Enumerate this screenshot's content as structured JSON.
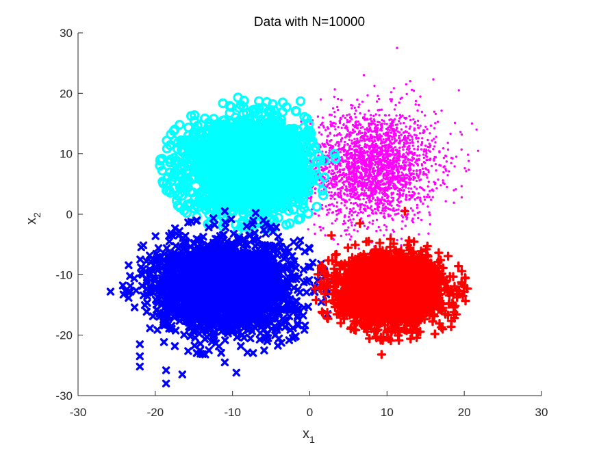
{
  "chart_data": {
    "type": "scatter",
    "title": "Data with N=10000",
    "xlabel": "x",
    "xlabel_sub": "1",
    "ylabel": "x",
    "ylabel_sub": "2",
    "xlim": [
      -30,
      30
    ],
    "ylim": [
      -30,
      30
    ],
    "xticks": [
      -30,
      -20,
      -10,
      0,
      10,
      20,
      30
    ],
    "yticks": [
      -30,
      -20,
      -10,
      0,
      10,
      20,
      30
    ],
    "xtick_labels": [
      "-30",
      "-20",
      "-10",
      "0",
      "10",
      "20",
      "30"
    ],
    "ytick_labels": [
      "-30",
      "-20",
      "-10",
      "0",
      "10",
      "20",
      "30"
    ],
    "grid": false,
    "legend": "none",
    "series": [
      {
        "marker": "dot",
        "color": "#ff00ff",
        "count": 2500,
        "mean": [
          8,
          8
        ],
        "std": [
          4.2,
          4.6
        ],
        "points": [
          [
            11.3,
            27.5
          ],
          [
            7.0,
            23.0
          ],
          [
            12.5,
            21.5
          ],
          [
            13.0,
            22.0
          ],
          [
            16.0,
            22.3
          ],
          [
            19.3,
            20.5
          ],
          [
            21.0,
            15.0
          ],
          [
            21.6,
            14.0
          ],
          [
            21.8,
            10.5
          ],
          [
            2.0,
            -3.5
          ]
        ]
      },
      {
        "marker": "circle",
        "color": "#00ffff",
        "count": 2500,
        "mean": [
          -8,
          8
        ],
        "std": [
          3.8,
          3.6
        ],
        "points": [
          [
            -9.3,
            19.3
          ],
          [
            -1.2,
            18.7
          ],
          [
            -3.5,
            18.5
          ],
          [
            -4.8,
            18.2
          ],
          [
            -6.0,
            17.6
          ],
          [
            -14.1,
            13.4
          ],
          [
            -15.2,
            11.7
          ],
          [
            -16.5,
            10.3
          ],
          [
            -17.0,
            8.6
          ],
          [
            -17.1,
            3.1
          ],
          [
            -15.0,
            1.0
          ],
          [
            -17.5,
            7.0
          ]
        ]
      },
      {
        "marker": "x",
        "color": "#0000ff",
        "count": 2500,
        "mean": [
          -11,
          -12
        ],
        "std": [
          4.4,
          3.8
        ],
        "points": [
          [
            -25.8,
            -12.8
          ],
          [
            -23.2,
            -12.8
          ],
          [
            -21.3,
            -9.5
          ],
          [
            -22.0,
            -21.5
          ],
          [
            -22.0,
            -23.5
          ],
          [
            -22.0,
            -25.2
          ],
          [
            -18.6,
            -25.8
          ],
          [
            -18.6,
            -28.0
          ],
          [
            -16.5,
            -26.5
          ],
          [
            -9.5,
            -26.2
          ],
          [
            -11.0,
            -24.5
          ],
          [
            2.3,
            -16.5
          ],
          [
            1.5,
            -14.5
          ],
          [
            -5.5,
            -21.0
          ],
          [
            -11.0,
            0.5
          ],
          [
            -7.0,
            0.2
          ],
          [
            -6.0,
            -1.0
          ]
        ]
      },
      {
        "marker": "plus",
        "color": "#ff0000",
        "count": 2500,
        "mean": [
          10.5,
          -12.5
        ],
        "std": [
          3.3,
          2.8
        ],
        "points": [
          [
            9.3,
            -23.2
          ],
          [
            12.3,
            0.5
          ],
          [
            6.5,
            -1.5
          ],
          [
            2.8,
            -3.5
          ],
          [
            3.3,
            -9.7
          ],
          [
            1.5,
            -8.5
          ],
          [
            16.2,
            -19.8
          ],
          [
            17.2,
            -19.0
          ],
          [
            18.3,
            -18.6
          ],
          [
            20.0,
            -12.8
          ],
          [
            19.7,
            -11.5
          ],
          [
            17.7,
            -11.0
          ]
        ]
      }
    ]
  }
}
